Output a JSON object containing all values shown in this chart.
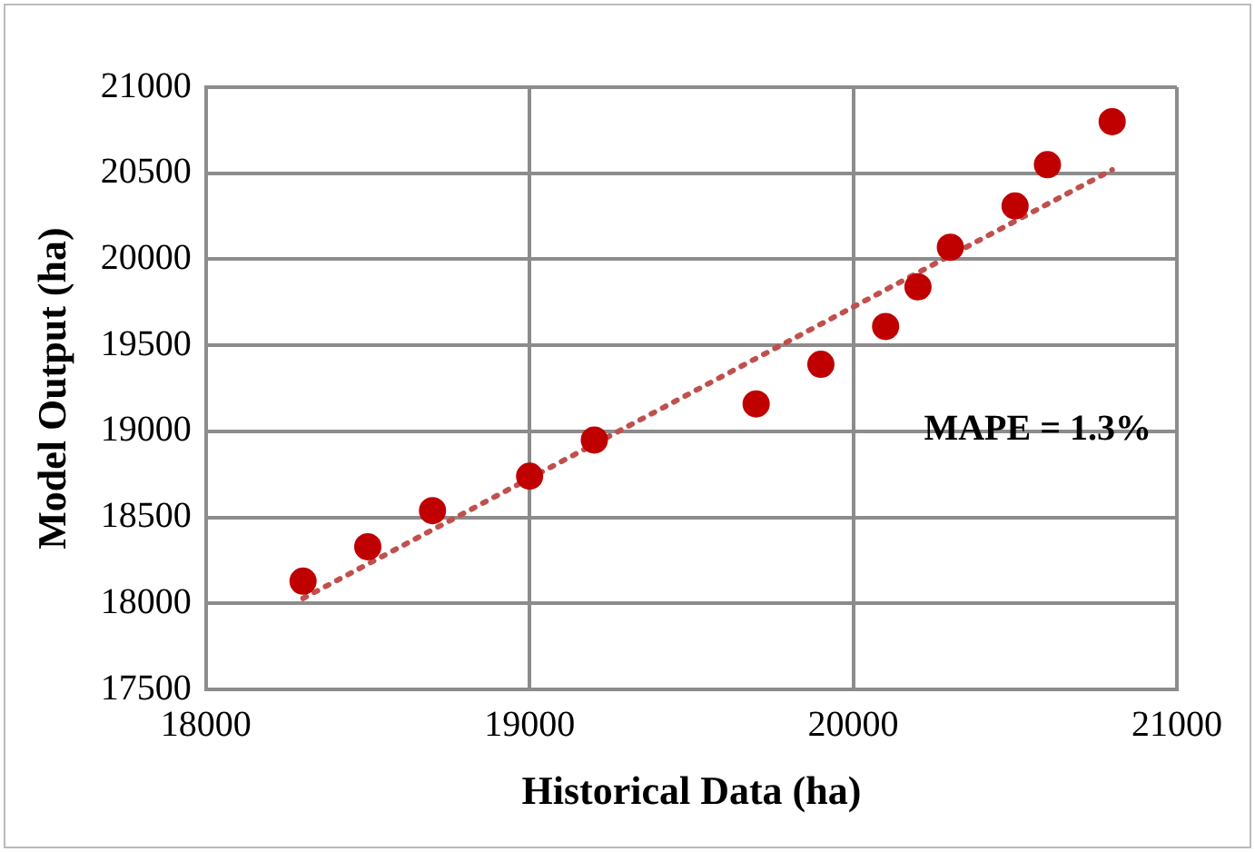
{
  "chart_data": {
    "type": "scatter",
    "xlabel": "Historical Data (ha)",
    "ylabel": "Model Output (ha)",
    "annotations": [
      "MAPE = 1.3%"
    ],
    "xlim": [
      18000,
      21000
    ],
    "xticks": [
      18000,
      19000,
      20000,
      21000
    ],
    "ylim": [
      17500,
      21000
    ],
    "yticks": [
      17500,
      18000,
      18500,
      19000,
      19500,
      20000,
      20500,
      21000
    ],
    "grid": true,
    "marker": "circle",
    "series": [
      {
        "color": "#c00000",
        "x": [
          18300,
          18500,
          18700,
          19000,
          19200,
          19700,
          19900,
          20100,
          20200,
          20300,
          20500,
          20600,
          20800
        ],
        "values": [
          18130,
          18330,
          18540,
          18740,
          18950,
          19160,
          19390,
          19610,
          19840,
          20070,
          20310,
          20550,
          20800
        ]
      },
      {
        "type": "line",
        "color": "#c0504d",
        "line_style": "dotted",
        "marker": "none",
        "x": [
          18300,
          20800
        ],
        "values": [
          18030,
          20520
        ]
      }
    ]
  }
}
